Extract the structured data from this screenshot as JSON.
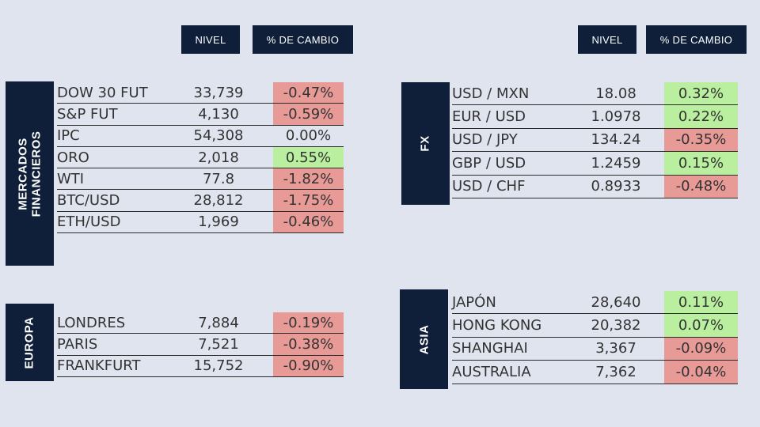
{
  "headers": {
    "nivel": "NIVEL",
    "cambio": "% DE CAMBIO"
  },
  "colors": {
    "navy": "#0f1f3a",
    "positive": "#b9ef9e",
    "negative": "#e89a96",
    "background": "#dfe4ee"
  },
  "sections": {
    "mercados": {
      "label_line1": "MERCADOS",
      "label_line2": "FINANCIEROS",
      "rows": [
        {
          "name": "DOW 30 FUT",
          "nivel": "33,739",
          "cambio": "-0.47%",
          "trend": "neg"
        },
        {
          "name": "S&P FUT",
          "nivel": "4,130",
          "cambio": "-0.59%",
          "trend": "neg"
        },
        {
          "name": "IPC",
          "nivel": "54,308",
          "cambio": "0.00%",
          "trend": "neu"
        },
        {
          "name": "ORO",
          "nivel": "2,018",
          "cambio": "0.55%",
          "trend": "pos"
        },
        {
          "name": "WTI",
          "nivel": "77.8",
          "cambio": "-1.82%",
          "trend": "neg"
        },
        {
          "name": "BTC/USD",
          "nivel": "28,812",
          "cambio": "-1.75%",
          "trend": "neg"
        },
        {
          "name": "ETH/USD",
          "nivel": "1,969",
          "cambio": "-0.46%",
          "trend": "neg"
        }
      ]
    },
    "fx": {
      "label": "FX",
      "rows": [
        {
          "name": "USD / MXN",
          "nivel": "18.08",
          "cambio": "0.32%",
          "trend": "pos"
        },
        {
          "name": "EUR / USD",
          "nivel": "1.0978",
          "cambio": "0.22%",
          "trend": "pos"
        },
        {
          "name": "USD / JPY",
          "nivel": "134.24",
          "cambio": "-0.35%",
          "trend": "neg"
        },
        {
          "name": "GBP / USD",
          "nivel": "1.2459",
          "cambio": "0.15%",
          "trend": "pos"
        },
        {
          "name": "USD / CHF",
          "nivel": "0.8933",
          "cambio": "-0.48%",
          "trend": "neg"
        }
      ]
    },
    "europa": {
      "label": "EUROPA",
      "rows": [
        {
          "name": "LONDRES",
          "nivel": "7,884",
          "cambio": "-0.19%",
          "trend": "neg"
        },
        {
          "name": "PARIS",
          "nivel": "7,521",
          "cambio": "-0.38%",
          "trend": "neg"
        },
        {
          "name": "FRANKFURT",
          "nivel": "15,752",
          "cambio": "-0.90%",
          "trend": "neg"
        }
      ]
    },
    "asia": {
      "label": "ASIA",
      "rows": [
        {
          "name": "JAPÓN",
          "nivel": "28,640",
          "cambio": "0.11%",
          "trend": "pos"
        },
        {
          "name": "HONG KONG",
          "nivel": "20,382",
          "cambio": "0.07%",
          "trend": "pos"
        },
        {
          "name": "SHANGHAI",
          "nivel": "3,367",
          "cambio": "-0.09%",
          "trend": "neg"
        },
        {
          "name": "AUSTRALIA",
          "nivel": "7,362",
          "cambio": "-0.04%",
          "trend": "neg"
        }
      ]
    }
  }
}
